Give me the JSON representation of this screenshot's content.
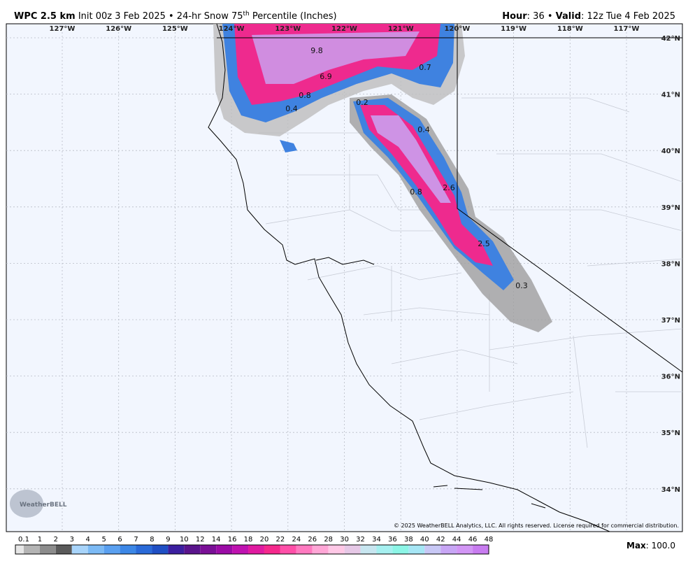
{
  "header": {
    "model": "WPC 2.5 km",
    "init_product": "Init 00z 3 Feb 2025 • 24-hr Snow 75",
    "superscript": "th",
    "product_suffix": "Percentile (Inches)",
    "hour_label": "Hour",
    "hour": ": 36 •",
    "valid_label": "Valid",
    "valid": ": 12z Tue 4 Feb 2025"
  },
  "longitudes": [
    "127°W",
    "126°W",
    "125°W",
    "124°W",
    "123°W",
    "122°W",
    "121°W",
    "120°W",
    "119°W",
    "118°W",
    "117°W"
  ],
  "latitudes": [
    "42°N",
    "41°N",
    "40°N",
    "39°N",
    "38°N",
    "37°N",
    "36°N",
    "35°N",
    "34°N"
  ],
  "annotations": [
    "9.8",
    "6.9",
    "0.8",
    "0.4",
    "0.2",
    "0.7",
    "0.4",
    "0.8",
    "2.6",
    "2.5",
    "0.3"
  ],
  "copyright": "© 2025 WeatherBELL Analytics, LLC. All rights reserved. License required for commercial distribution.",
  "logo": "WeatherBELL",
  "colorbar": {
    "labels": [
      "0.1",
      "1",
      "2",
      "3",
      "4",
      "5",
      "6",
      "7",
      "8",
      "9",
      "10",
      "12",
      "14",
      "16",
      "18",
      "20",
      "22",
      "24",
      "26",
      "28",
      "30",
      "32",
      "34",
      "36",
      "38",
      "40",
      "42",
      "44",
      "46",
      "48"
    ],
    "colors": [
      "#e6e6e6",
      "#b4b4b4",
      "#8c8c8c",
      "#5a5a5a",
      "#a8d4fa",
      "#7cbaf5",
      "#5aa0f0",
      "#3c87e6",
      "#2a6ad8",
      "#1f4fc4",
      "#3c1fa0",
      "#5a148c",
      "#7a0f96",
      "#9b0ca6",
      "#bf12b0",
      "#e01aa0",
      "#f5288c",
      "#ff4fa8",
      "#ff7ac0",
      "#ffa6d6",
      "#ffc8e6",
      "#e6c8e6",
      "#c8e6f0",
      "#a6f0f0",
      "#8cf5e6",
      "#a6e6f5",
      "#c8c8f5",
      "#c8a6f5",
      "#d296f5",
      "#c87cf0"
    ]
  },
  "max_label": "Max",
  "max_value": ": 100.0"
}
